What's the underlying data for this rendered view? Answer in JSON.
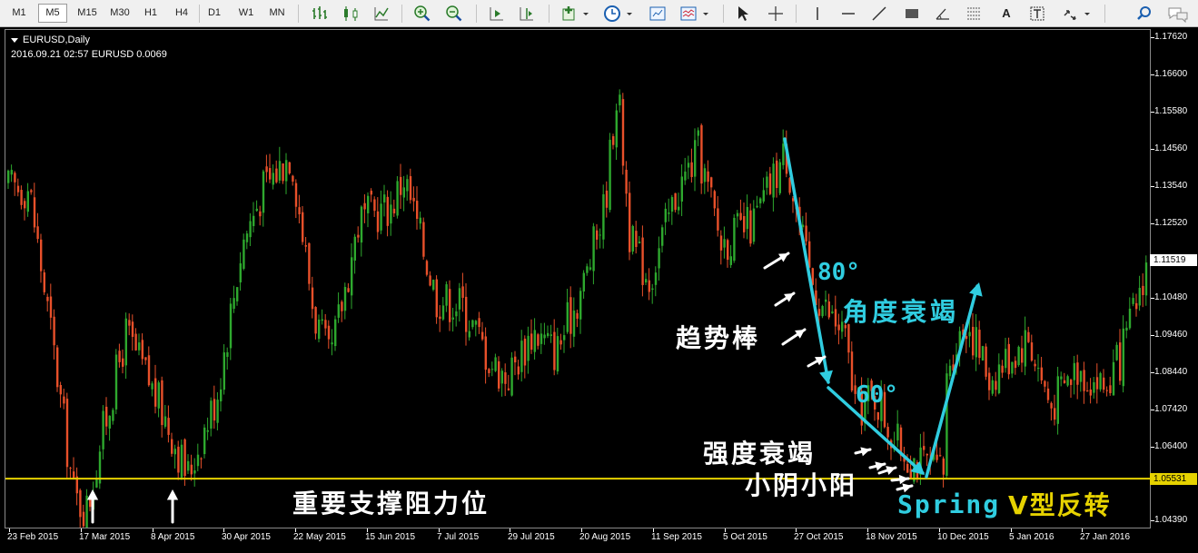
{
  "toolbar": {
    "timeframes": [
      "M1",
      "M5",
      "M15",
      "M30",
      "H1",
      "H4",
      "D1",
      "W1",
      "MN"
    ],
    "active_timeframe": "M5",
    "text_tool": "A"
  },
  "chart_header": {
    "symbol": "EURUSD,Daily",
    "info_line": "2016.09.21 02:57 EURUSD 0.0069"
  },
  "annotations": {
    "support_text": "重要支撑阻力位",
    "angle80": "80°",
    "angle_decay": "角度衰竭",
    "trend_bar": "趋势棒",
    "angle60": "60°",
    "strength_decay": "强度衰竭",
    "small_bars": "小阴小阳",
    "spring": "Spring",
    "v_reversal": "V型反转"
  },
  "colors": {
    "background": "#000000",
    "bull_candle": "#2ea82e",
    "bear_candle": "#e8502a",
    "support_line": "#e6d200",
    "annotation_cyan": "#30cde0",
    "annotation_white": "#ffffff"
  },
  "chart_data": {
    "type": "candlestick",
    "title": "EURUSD,Daily",
    "y_tick_labels": [
      "1.17620",
      "1.16600",
      "1.15580",
      "1.14560",
      "1.13540",
      "1.12520",
      "1.11519",
      "1.10480",
      "1.09460",
      "1.08440",
      "1.07420",
      "1.06400",
      "1.05531",
      "1.04390"
    ],
    "ylim": [
      1.0419,
      1.1782
    ],
    "current_price": "1.11519",
    "support_level": "1.05531",
    "x_tick_labels": [
      "23 Feb 2015",
      "17 Mar 2015",
      "8 Apr 2015",
      "30 Apr 2015",
      "22 May 2015",
      "15 Jun 2015",
      "7 Jul 2015",
      "29 Jul 2015",
      "20 Aug 2015",
      "11 Sep 2015",
      "5 Oct 2015",
      "27 Oct 2015",
      "18 Nov 2015",
      "10 Dec 2015",
      "5 Jan 2016",
      "27 Jan 2016"
    ],
    "x_range": [
      "2015-02-16",
      "2016-02-05"
    ],
    "grid": false,
    "series": [
      {
        "date": "2015-02-23",
        "close": 1.135
      },
      {
        "date": "2015-03-02",
        "close": 1.094
      },
      {
        "date": "2015-03-09",
        "close": 1.05
      },
      {
        "date": "2015-03-13",
        "close": 1.047
      },
      {
        "date": "2015-03-17",
        "close": 1.065
      },
      {
        "date": "2015-03-25",
        "close": 1.095
      },
      {
        "date": "2015-04-01",
        "close": 1.082
      },
      {
        "date": "2015-04-08",
        "close": 1.068
      },
      {
        "date": "2015-04-13",
        "close": 1.056
      },
      {
        "date": "2015-04-22",
        "close": 1.078
      },
      {
        "date": "2015-04-30",
        "close": 1.12
      },
      {
        "date": "2015-05-06",
        "close": 1.134
      },
      {
        "date": "2015-05-15",
        "close": 1.145
      },
      {
        "date": "2015-05-22",
        "close": 1.101
      },
      {
        "date": "2015-05-27",
        "close": 1.087
      },
      {
        "date": "2015-06-05",
        "close": 1.126
      },
      {
        "date": "2015-06-15",
        "close": 1.13
      },
      {
        "date": "2015-06-19",
        "close": 1.138
      },
      {
        "date": "2015-06-29",
        "close": 1.105
      },
      {
        "date": "2015-07-07",
        "close": 1.103
      },
      {
        "date": "2015-07-16",
        "close": 1.087
      },
      {
        "date": "2015-07-21",
        "close": 1.083
      },
      {
        "date": "2015-07-29",
        "close": 1.096
      },
      {
        "date": "2015-08-05",
        "close": 1.09
      },
      {
        "date": "2015-08-14",
        "close": 1.11
      },
      {
        "date": "2015-08-20",
        "close": 1.13
      },
      {
        "date": "2015-08-24",
        "close": 1.163
      },
      {
        "date": "2015-08-28",
        "close": 1.12
      },
      {
        "date": "2015-09-03",
        "close": 1.11
      },
      {
        "date": "2015-09-11",
        "close": 1.133
      },
      {
        "date": "2015-09-18",
        "close": 1.145
      },
      {
        "date": "2015-09-25",
        "close": 1.12
      },
      {
        "date": "2015-10-05",
        "close": 1.125
      },
      {
        "date": "2015-10-15",
        "close": 1.145
      },
      {
        "date": "2015-10-22",
        "close": 1.112
      },
      {
        "date": "2015-10-27",
        "close": 1.102
      },
      {
        "date": "2015-11-02",
        "close": 1.095
      },
      {
        "date": "2015-11-06",
        "close": 1.074
      },
      {
        "date": "2015-11-12",
        "close": 1.078
      },
      {
        "date": "2015-11-18",
        "close": 1.065
      },
      {
        "date": "2015-11-26",
        "close": 1.059
      },
      {
        "date": "2015-12-03",
        "close": 1.057
      },
      {
        "date": "2015-12-04",
        "close": 1.087
      },
      {
        "date": "2015-12-10",
        "close": 1.099
      },
      {
        "date": "2015-12-17",
        "close": 1.083
      },
      {
        "date": "2015-12-29",
        "close": 1.094
      },
      {
        "date": "2016-01-05",
        "close": 1.075
      },
      {
        "date": "2016-01-13",
        "close": 1.086
      },
      {
        "date": "2016-01-22",
        "close": 1.08
      },
      {
        "date": "2016-01-27",
        "close": 1.089
      },
      {
        "date": "2016-02-01",
        "close": 1.105
      },
      {
        "date": "2016-02-05",
        "close": 1.12
      }
    ]
  }
}
